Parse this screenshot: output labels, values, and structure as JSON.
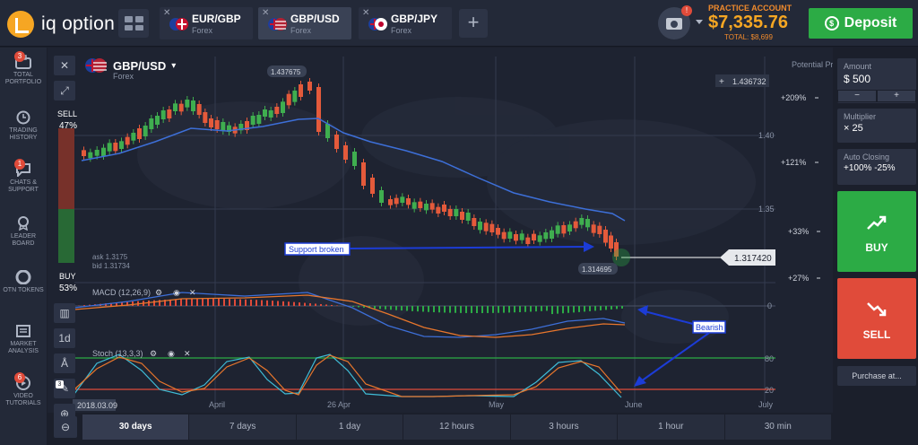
{
  "brand": {
    "name": "iq option"
  },
  "tabs": [
    {
      "pair": "EUR/GBP",
      "type": "Forex",
      "active": false
    },
    {
      "pair": "GBP/USD",
      "type": "Forex",
      "active": true
    },
    {
      "pair": "GBP/JPY",
      "type": "Forex",
      "active": false
    }
  ],
  "header": {
    "camera_badge": "!",
    "account_label": "PRACTICE ACCOUNT",
    "balance": "$7,335.76",
    "total": "TOTAL: $8,699",
    "deposit_label": "Deposit",
    "deposit_icon": "$"
  },
  "leftnav": [
    {
      "label": "TOTAL PORTFOLIO",
      "icon": "portfolio-icon",
      "badge": "3"
    },
    {
      "label": "TRADING HISTORY",
      "icon": "history-icon",
      "badge": ""
    },
    {
      "label": "CHATS & SUPPORT",
      "icon": "chat-icon",
      "badge": "1"
    },
    {
      "label": "LEADER BOARD",
      "icon": "leaderboard-icon",
      "badge": ""
    },
    {
      "label": "OTN TOKENS",
      "icon": "token-icon",
      "badge": ""
    },
    {
      "label": "MARKET ANALYSIS",
      "icon": "analysis-icon",
      "badge": ""
    },
    {
      "label": "VIDEO TUTORIALS",
      "icon": "video-icon",
      "badge": "6"
    }
  ],
  "chart": {
    "pair": "GBP/USD",
    "type": "Forex",
    "sell_label": "SELL",
    "sell_pct": "47%",
    "buy_label": "BUY",
    "buy_pct": "53%",
    "ask": "ask 1.3175",
    "bid": "bid 1.31734",
    "max_price": "1.437675",
    "min_price": "1.314695",
    "current_price": "1.317420",
    "crosshair_price": "1.436732",
    "potential_profit": "Potential Profit",
    "profit_levels": [
      "+209%",
      "+121%",
      "+33%",
      "+27%"
    ],
    "price_ticks": [
      "1.40",
      "1.35"
    ],
    "macd_label": "MACD (12,26,9)",
    "stoch_label": "Stoch (13,3,3)",
    "stoch_ticks": [
      "80",
      "20"
    ],
    "macd_tick": "0",
    "date_labels": [
      "April",
      "26 Apr",
      "May",
      "June",
      "July"
    ],
    "date_start": "2018.03.09",
    "annotations": {
      "support": "Support broken",
      "bearish": "Bearish"
    },
    "tool_count": "3",
    "timeframe_btn": "1d"
  },
  "chart_data": {
    "type": "line",
    "title": "GBP/USD",
    "price_range": [
      1.3,
      1.45
    ],
    "indicators": [
      "MACD (12,26,9)",
      "Stoch (13,3,3)"
    ],
    "max_marker": 1.437675,
    "min_marker": 1.314695,
    "current": 1.31742
  },
  "right": {
    "amount_label": "Amount",
    "amount_value": "$ 500",
    "multiplier_label": "Multiplier",
    "multiplier_value": "× 25",
    "auto_label": "Auto Closing",
    "auto_value": "+100% -25%",
    "buy": "BUY",
    "sell": "SELL",
    "purchase": "Purchase at..."
  },
  "timeframes": [
    "30 days",
    "7 days",
    "1 day",
    "12 hours",
    "3 hours",
    "1 hour",
    "30 min"
  ],
  "colors": {
    "buy": "#2cab45",
    "sell": "#e04b3a",
    "accent": "#f5a623"
  }
}
